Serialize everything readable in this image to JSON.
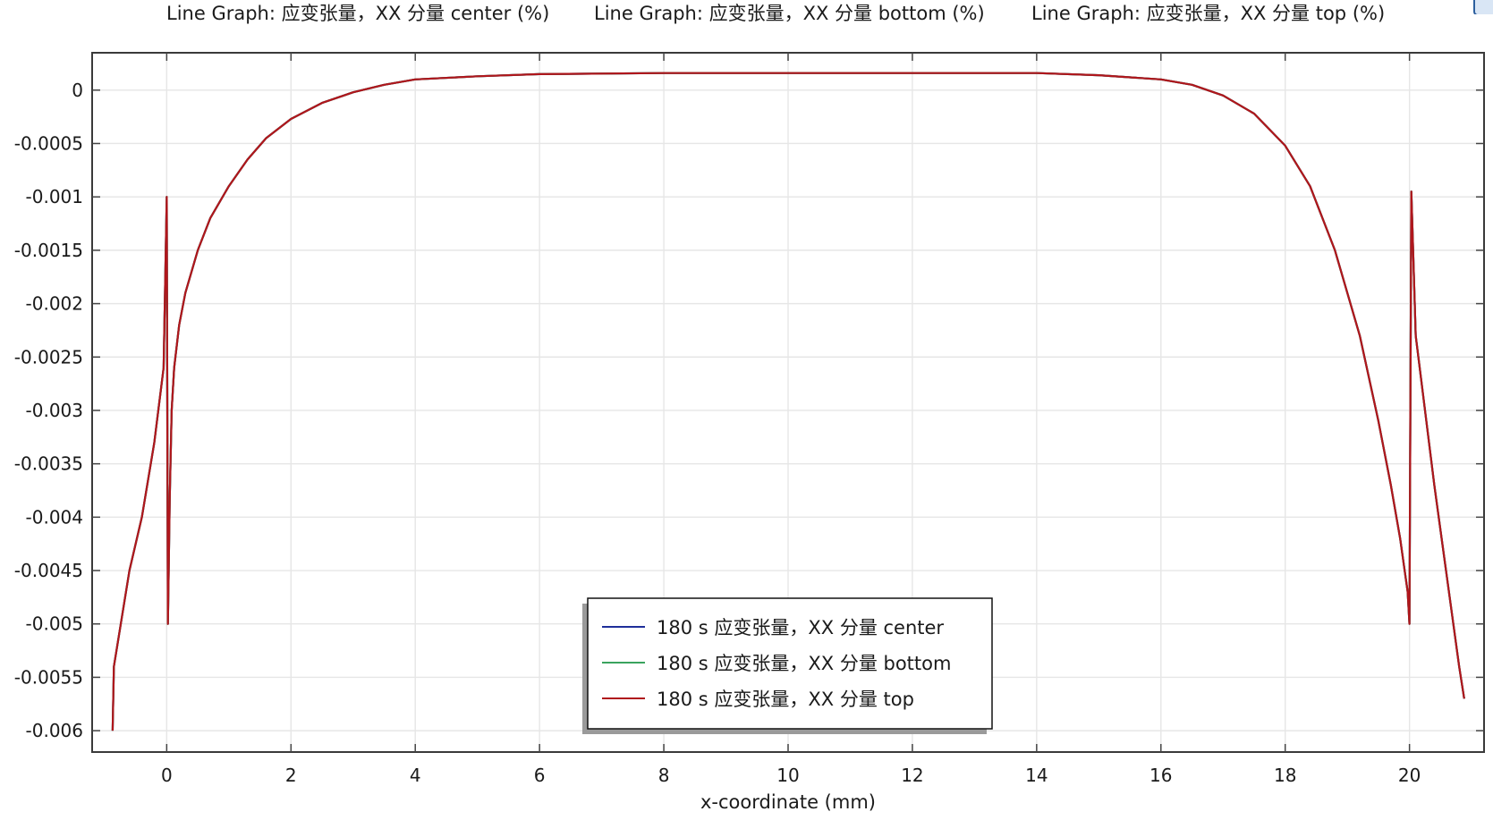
{
  "chart_data": {
    "type": "line",
    "titles": [
      "Line Graph: 应变张量，XX 分量 center (%)",
      "Line Graph: 应变张量，XX 分量 bottom (%)",
      "Line Graph: 应变张量，XX 分量 top (%)"
    ],
    "xlabel": "x-coordinate (mm)",
    "ylabel": "",
    "xlim": [
      -1.2,
      21.2
    ],
    "ylim": [
      -0.0062,
      0.00035
    ],
    "xticks": [
      0,
      2,
      4,
      6,
      8,
      10,
      12,
      14,
      16,
      18,
      20
    ],
    "xtick_labels": [
      "0",
      "2",
      "4",
      "6",
      "8",
      "10",
      "12",
      "14",
      "16",
      "18",
      "20"
    ],
    "yticks": [
      0,
      -0.0005,
      -0.001,
      -0.0015,
      -0.002,
      -0.0025,
      -0.003,
      -0.0035,
      -0.004,
      -0.0045,
      -0.005,
      -0.0055,
      -0.006
    ],
    "ytick_labels": [
      "0",
      "-0.0005",
      "-0.001",
      "-0.0015",
      "-0.002",
      "-0.0025",
      "-0.003",
      "-0.0035",
      "-0.004",
      "-0.0045",
      "-0.005",
      "-0.0055",
      "-0.006"
    ],
    "grid": true,
    "legend_position": "bottom-center",
    "series": [
      {
        "name": "180 s 应变张量，XX 分量 center",
        "color": "#1f2f9a",
        "x": [
          -0.87,
          -0.85,
          -0.6,
          -0.4,
          -0.2,
          -0.05,
          0,
          0.02,
          0.05,
          0.08,
          0.12,
          0.2,
          0.3,
          0.5,
          0.7,
          1.0,
          1.3,
          1.6,
          2.0,
          2.5,
          3.0,
          3.5,
          4.0,
          5.0,
          6.0,
          8.0,
          10.0,
          12.0,
          14.0,
          15.0,
          16.0,
          16.5,
          17.0,
          17.5,
          18.0,
          18.4,
          18.8,
          19.2,
          19.5,
          19.7,
          19.85,
          19.97,
          20.0,
          20.03,
          20.1,
          20.4,
          20.8,
          20.88
        ],
        "y": [
          -0.006,
          -0.0054,
          -0.0045,
          -0.004,
          -0.0033,
          -0.0026,
          -0.001,
          -0.005,
          -0.0038,
          -0.003,
          -0.0026,
          -0.0022,
          -0.0019,
          -0.0015,
          -0.0012,
          -0.0009,
          -0.00065,
          -0.00045,
          -0.00027,
          -0.00012,
          -2e-05,
          5e-05,
          0.0001,
          0.00013,
          0.00015,
          0.00016,
          0.00016,
          0.00016,
          0.00016,
          0.00014,
          0.0001,
          5e-05,
          -5e-05,
          -0.00022,
          -0.00052,
          -0.0009,
          -0.0015,
          -0.0023,
          -0.0031,
          -0.0037,
          -0.0042,
          -0.0047,
          -0.005,
          -0.00095,
          -0.0023,
          -0.0037,
          -0.0054,
          -0.0057
        ]
      },
      {
        "name": "180 s 应变张量，XX 分量 bottom",
        "color": "#3aa35e",
        "x": [
          -0.87,
          -0.85,
          -0.6,
          -0.4,
          -0.2,
          -0.05,
          0,
          0.02,
          0.05,
          0.08,
          0.12,
          0.2,
          0.3,
          0.5,
          0.7,
          1.0,
          1.3,
          1.6,
          2.0,
          2.5,
          3.0,
          3.5,
          4.0,
          5.0,
          6.0,
          8.0,
          10.0,
          12.0,
          14.0,
          15.0,
          16.0,
          16.5,
          17.0,
          17.5,
          18.0,
          18.4,
          18.8,
          19.2,
          19.5,
          19.7,
          19.85,
          19.97,
          20.0,
          20.03,
          20.1,
          20.4,
          20.8,
          20.88
        ],
        "y": [
          -0.006,
          -0.0054,
          -0.0045,
          -0.004,
          -0.0033,
          -0.0026,
          -0.001,
          -0.005,
          -0.0038,
          -0.003,
          -0.0026,
          -0.0022,
          -0.0019,
          -0.0015,
          -0.0012,
          -0.0009,
          -0.00065,
          -0.00045,
          -0.00027,
          -0.00012,
          -2e-05,
          5e-05,
          0.0001,
          0.00013,
          0.00015,
          0.00016,
          0.00016,
          0.00016,
          0.00016,
          0.00014,
          0.0001,
          5e-05,
          -5e-05,
          -0.00022,
          -0.00052,
          -0.0009,
          -0.0015,
          -0.0023,
          -0.0031,
          -0.0037,
          -0.0042,
          -0.0047,
          -0.005,
          -0.00095,
          -0.0023,
          -0.0037,
          -0.0054,
          -0.0057
        ]
      },
      {
        "name": "180 s 应变张量，XX 分量 top",
        "color": "#b0161c",
        "x": [
          -0.87,
          -0.85,
          -0.6,
          -0.4,
          -0.2,
          -0.05,
          0,
          0.02,
          0.05,
          0.08,
          0.12,
          0.2,
          0.3,
          0.5,
          0.7,
          1.0,
          1.3,
          1.6,
          2.0,
          2.5,
          3.0,
          3.5,
          4.0,
          5.0,
          6.0,
          8.0,
          10.0,
          12.0,
          14.0,
          15.0,
          16.0,
          16.5,
          17.0,
          17.5,
          18.0,
          18.4,
          18.8,
          19.2,
          19.5,
          19.7,
          19.85,
          19.97,
          20.0,
          20.03,
          20.1,
          20.4,
          20.8,
          20.88
        ],
        "y": [
          -0.006,
          -0.0054,
          -0.0045,
          -0.004,
          -0.0033,
          -0.0026,
          -0.001,
          -0.005,
          -0.0038,
          -0.003,
          -0.0026,
          -0.0022,
          -0.0019,
          -0.0015,
          -0.0012,
          -0.0009,
          -0.00065,
          -0.00045,
          -0.00027,
          -0.00012,
          -2e-05,
          5e-05,
          0.0001,
          0.00013,
          0.00015,
          0.00016,
          0.00016,
          0.00016,
          0.00016,
          0.00014,
          0.0001,
          5e-05,
          -5e-05,
          -0.00022,
          -0.00052,
          -0.0009,
          -0.0015,
          -0.0023,
          -0.0031,
          -0.0037,
          -0.0042,
          -0.0047,
          -0.005,
          -0.00095,
          -0.0023,
          -0.0037,
          -0.0054,
          -0.0057
        ]
      }
    ]
  }
}
